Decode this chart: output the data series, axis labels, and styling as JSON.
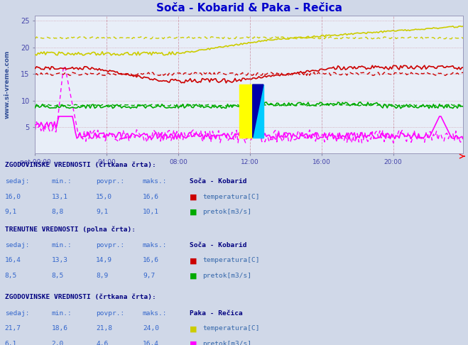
{
  "title": "Soča - Kobarid & Paka - Rečica",
  "title_color": "#0000cc",
  "bg_color": "#d0d8e8",
  "plot_bg_color": "#e8eef8",
  "grid_color": "#c8b0c0",
  "axis_label_color": "#4444aa",
  "n_points": 288,
  "x_ticks": [
    "pet 00:00",
    "04:00",
    "08:00",
    "12:00",
    "16:00",
    "20:00"
  ],
  "ylim": [
    0,
    26
  ],
  "xlim": [
    0,
    287
  ],
  "soca_temp_color": "#cc0000",
  "soca_pretok_color": "#00aa00",
  "paka_temp_color": "#cccc00",
  "paka_pretok_color": "#ff00ff",
  "watermark": "www.si-vreme.com",
  "watermark_color": "#1a3a8a",
  "table_header_color": "#000080",
  "table_value_color": "#3366cc",
  "table_label_color": "#3366aa"
}
